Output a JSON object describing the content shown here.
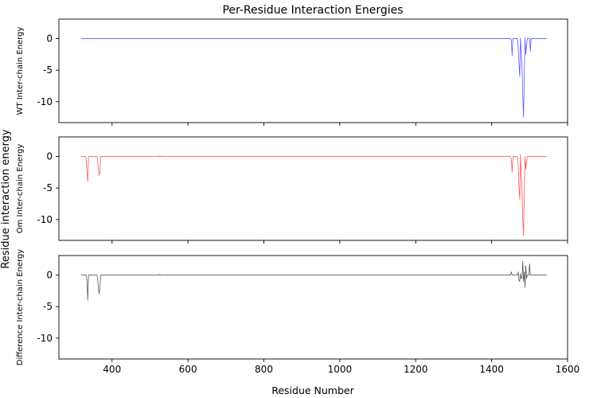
{
  "chart_data": {
    "type": "line",
    "title": "Per-Residue Interaction Energies",
    "shared_ylabel": "Residue interaction energy",
    "xlabel": "Residue Number",
    "xlim": [
      260,
      1600
    ],
    "ylim": [
      -13.3,
      3.1
    ],
    "x_ticks": [
      400,
      600,
      800,
      1000,
      1200,
      1400,
      1600
    ],
    "y_ticks": [
      0,
      -5,
      -10
    ],
    "panels": [
      {
        "ylabel": "WT Inter-chain Energy",
        "color": "#0000ff",
        "points": [
          [
            318,
            0
          ],
          [
            1450,
            0
          ],
          [
            1452,
            -0.3
          ],
          [
            1454,
            -2.7
          ],
          [
            1456,
            0
          ],
          [
            1468,
            0
          ],
          [
            1470,
            -1.5
          ],
          [
            1472,
            -4
          ],
          [
            1474,
            -6
          ],
          [
            1476,
            0.1
          ],
          [
            1478,
            -2
          ],
          [
            1480,
            -4.5
          ],
          [
            1482,
            -9
          ],
          [
            1484,
            -12.5
          ],
          [
            1486,
            -6
          ],
          [
            1488,
            0.1
          ],
          [
            1490,
            -2.5
          ],
          [
            1492,
            -1
          ],
          [
            1494,
            0
          ],
          [
            1500,
            0
          ],
          [
            1502,
            -2
          ],
          [
            1504,
            0
          ],
          [
            1545,
            0
          ]
        ]
      },
      {
        "ylabel": "Om Inter-chain Energy",
        "color": "#ff0000",
        "points": [
          [
            318,
            0
          ],
          [
            330,
            0
          ],
          [
            332,
            -0.5
          ],
          [
            334,
            -2.5
          ],
          [
            336,
            -4
          ],
          [
            338,
            0
          ],
          [
            360,
            0
          ],
          [
            362,
            -0.5
          ],
          [
            364,
            -2
          ],
          [
            366,
            -3
          ],
          [
            368,
            -2.5
          ],
          [
            370,
            0
          ],
          [
            524,
            0
          ],
          [
            526,
            0.15
          ],
          [
            528,
            0
          ],
          [
            1450,
            0
          ],
          [
            1452,
            -0.5
          ],
          [
            1454,
            -2.5
          ],
          [
            1456,
            0
          ],
          [
            1468,
            0
          ],
          [
            1470,
            -1.5
          ],
          [
            1472,
            -5
          ],
          [
            1474,
            -6.8
          ],
          [
            1476,
            0.3
          ],
          [
            1478,
            -3
          ],
          [
            1480,
            -5
          ],
          [
            1482,
            -10
          ],
          [
            1484,
            -12.6
          ],
          [
            1486,
            -5.5
          ],
          [
            1488,
            0
          ],
          [
            1490,
            -2
          ],
          [
            1492,
            -1
          ],
          [
            1494,
            0
          ],
          [
            1545,
            0
          ]
        ]
      },
      {
        "ylabel": "Difference Inter-chain Energy",
        "color": "#000000",
        "points": [
          [
            318,
            0
          ],
          [
            332,
            0
          ],
          [
            334,
            -1
          ],
          [
            336,
            -4
          ],
          [
            338,
            0
          ],
          [
            360,
            0
          ],
          [
            362,
            -0.5
          ],
          [
            364,
            -2
          ],
          [
            366,
            -3
          ],
          [
            368,
            -2
          ],
          [
            370,
            0
          ],
          [
            524,
            0
          ],
          [
            526,
            0.15
          ],
          [
            528,
            0
          ],
          [
            1450,
            0
          ],
          [
            1452,
            0.5
          ],
          [
            1454,
            0
          ],
          [
            1468,
            0
          ],
          [
            1470,
            0.5
          ],
          [
            1472,
            -0.8
          ],
          [
            1474,
            -1
          ],
          [
            1476,
            0.2
          ],
          [
            1478,
            -0.5
          ],
          [
            1480,
            -0.5
          ],
          [
            1482,
            2.2
          ],
          [
            1484,
            -1
          ],
          [
            1486,
            0.5
          ],
          [
            1488,
            -2
          ],
          [
            1490,
            1.5
          ],
          [
            1492,
            -0.5
          ],
          [
            1494,
            0
          ],
          [
            1498,
            0
          ],
          [
            1500,
            1.8
          ],
          [
            1502,
            0
          ],
          [
            1545,
            0
          ]
        ]
      }
    ]
  }
}
